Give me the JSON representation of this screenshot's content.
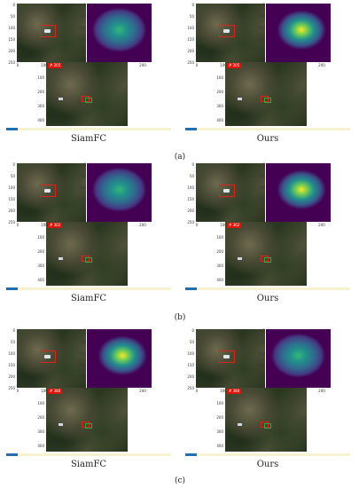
{
  "rows": [
    {
      "sub_caption": "(a)",
      "panels": [
        {
          "caption": "SiamFC",
          "frame_label": "# 205",
          "heat_style": "weak"
        },
        {
          "caption": "Ours",
          "frame_label": "# 205",
          "heat_style": "strong"
        }
      ]
    },
    {
      "sub_caption": "(b)",
      "panels": [
        {
          "caption": "SiamFC",
          "frame_label": "# 302",
          "heat_style": "weak"
        },
        {
          "caption": "Ours",
          "frame_label": "# 302",
          "heat_style": "strong"
        }
      ]
    },
    {
      "sub_caption": "(c)",
      "panels": [
        {
          "caption": "SiamFC",
          "frame_label": "# 380",
          "heat_style": "strong"
        },
        {
          "caption": "Ours",
          "frame_label": "# 380",
          "heat_style": "weak"
        }
      ]
    }
  ],
  "axes": {
    "search_y_ticks": [
      "0",
      "50",
      "100",
      "150",
      "200",
      "250"
    ],
    "search_x_ticks": [
      "0",
      "100",
      "200"
    ],
    "frame_y_ticks": [
      "100",
      "200",
      "300",
      "400"
    ]
  },
  "colors": {
    "bbox": "#d9261c",
    "progress_fill": "#1f6fb3",
    "progress_track": "#f6f2cf",
    "heat_low": "#440154",
    "heat_mid": "#21918c",
    "heat_high": "#fde725"
  },
  "progress_fraction": 0.05
}
